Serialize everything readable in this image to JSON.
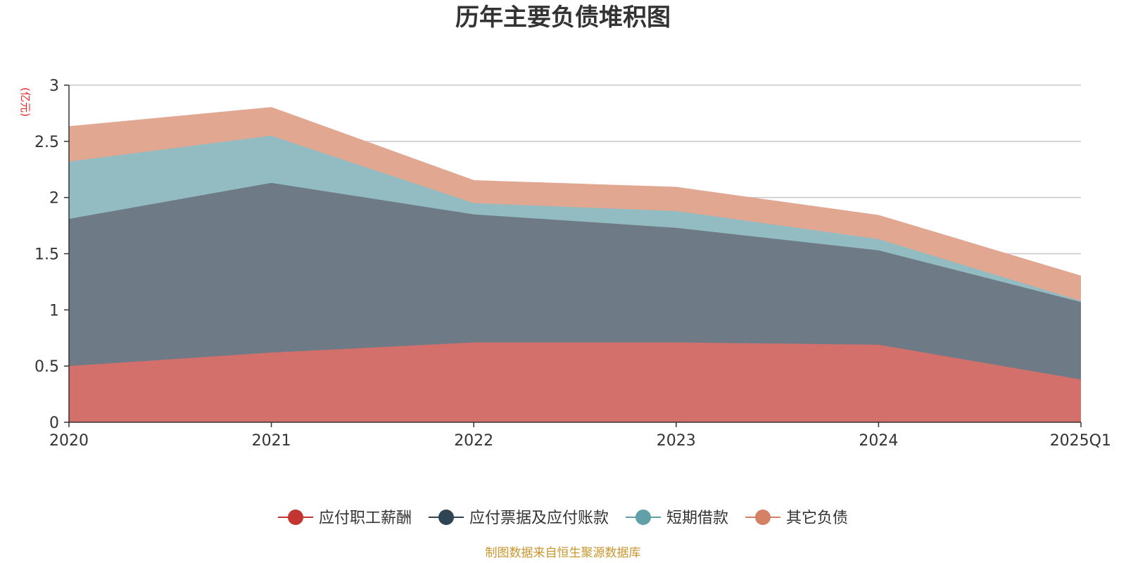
{
  "chart_data": {
    "type": "area",
    "stacked": true,
    "title": "历年主要负债堆积图",
    "unit_label": "(亿元)",
    "unit_color": "#e8262a",
    "categories": [
      "2020",
      "2021",
      "2022",
      "2023",
      "2024",
      "2025Q1"
    ],
    "ylim": [
      0,
      3
    ],
    "yticks": [
      0,
      0.5,
      1,
      1.5,
      2,
      2.5,
      3
    ],
    "grid": true,
    "legend_position": "bottom",
    "series": [
      {
        "name": "应付职工薪酬",
        "color": "#c23531",
        "fill": "#d4706b",
        "values": [
          0.5,
          0.62,
          0.71,
          0.71,
          0.69,
          0.38
        ]
      },
      {
        "name": "应付票据及应付账款",
        "color": "#2f4554",
        "fill": "#6e7b86",
        "values": [
          1.31,
          1.51,
          1.14,
          1.02,
          0.84,
          0.69
        ]
      },
      {
        "name": "短期借款",
        "color": "#61a0a8",
        "fill": "#92bcc2",
        "values": [
          0.51,
          0.42,
          0.1,
          0.15,
          0.1,
          0.01
        ]
      },
      {
        "name": "其它负债",
        "color": "#d48265",
        "fill": "#e1a791",
        "values": [
          0.31,
          0.25,
          0.2,
          0.21,
          0.21,
          0.22
        ]
      }
    ]
  },
  "footer": {
    "source": "制图数据来自恒生聚源数据库",
    "source_color": "#c9962c"
  }
}
